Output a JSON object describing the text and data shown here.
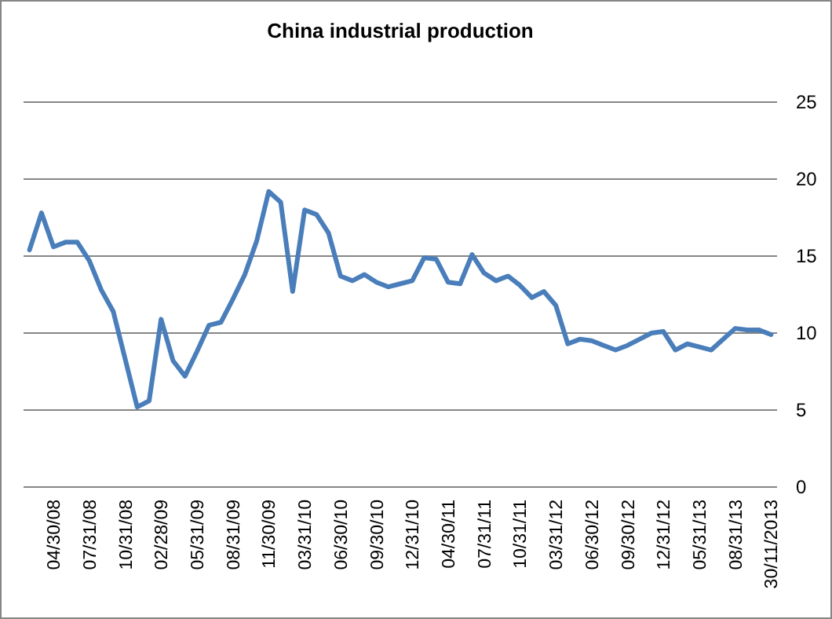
{
  "chart_data": {
    "type": "line",
    "title": "China industrial production",
    "categories": [
      null,
      null,
      "04/30/08",
      null,
      null,
      "07/31/08",
      null,
      null,
      "10/31/08",
      null,
      null,
      "02/28/09",
      null,
      null,
      "05/31/09",
      null,
      null,
      "08/31/09",
      null,
      null,
      "11/30/09",
      null,
      null,
      "03/31/10",
      null,
      null,
      "06/30/10",
      null,
      null,
      "09/30/10",
      null,
      null,
      "12/31/10",
      null,
      null,
      "04/30/11",
      null,
      null,
      "07/31/11",
      null,
      null,
      "10/31/11",
      null,
      null,
      "03/31/12",
      null,
      null,
      "06/30/12",
      null,
      null,
      "09/30/12",
      null,
      null,
      "12/31/12",
      null,
      null,
      "05/31/13",
      null,
      null,
      "08/31/13",
      null,
      null,
      "30/11/2013"
    ],
    "series": [
      {
        "color": "#4a7ebb",
        "values": [
          15.4,
          17.8,
          15.6,
          15.9,
          15.9,
          14.7,
          12.8,
          11.4,
          8.3,
          5.2,
          5.6,
          10.9,
          8.2,
          7.2,
          8.8,
          10.5,
          10.7,
          12.2,
          13.8,
          16.0,
          19.2,
          18.5,
          12.7,
          18.0,
          17.7,
          16.5,
          13.7,
          13.4,
          13.8,
          13.3,
          13.0,
          13.2,
          13.4,
          14.9,
          14.8,
          13.3,
          13.2,
          15.1,
          13.9,
          13.4,
          13.7,
          13.1,
          12.3,
          12.7,
          11.8,
          9.3,
          9.6,
          9.5,
          9.2,
          8.9,
          9.2,
          9.6,
          10.0,
          10.1,
          8.9,
          9.3,
          9.1,
          8.9,
          9.6,
          10.3,
          10.2,
          10.2,
          9.9
        ]
      }
    ],
    "ylim": [
      0,
      25
    ],
    "yticks": [
      0,
      5,
      10,
      15,
      20,
      25
    ],
    "grid": "y",
    "marker": "none",
    "line_style": "solid"
  }
}
